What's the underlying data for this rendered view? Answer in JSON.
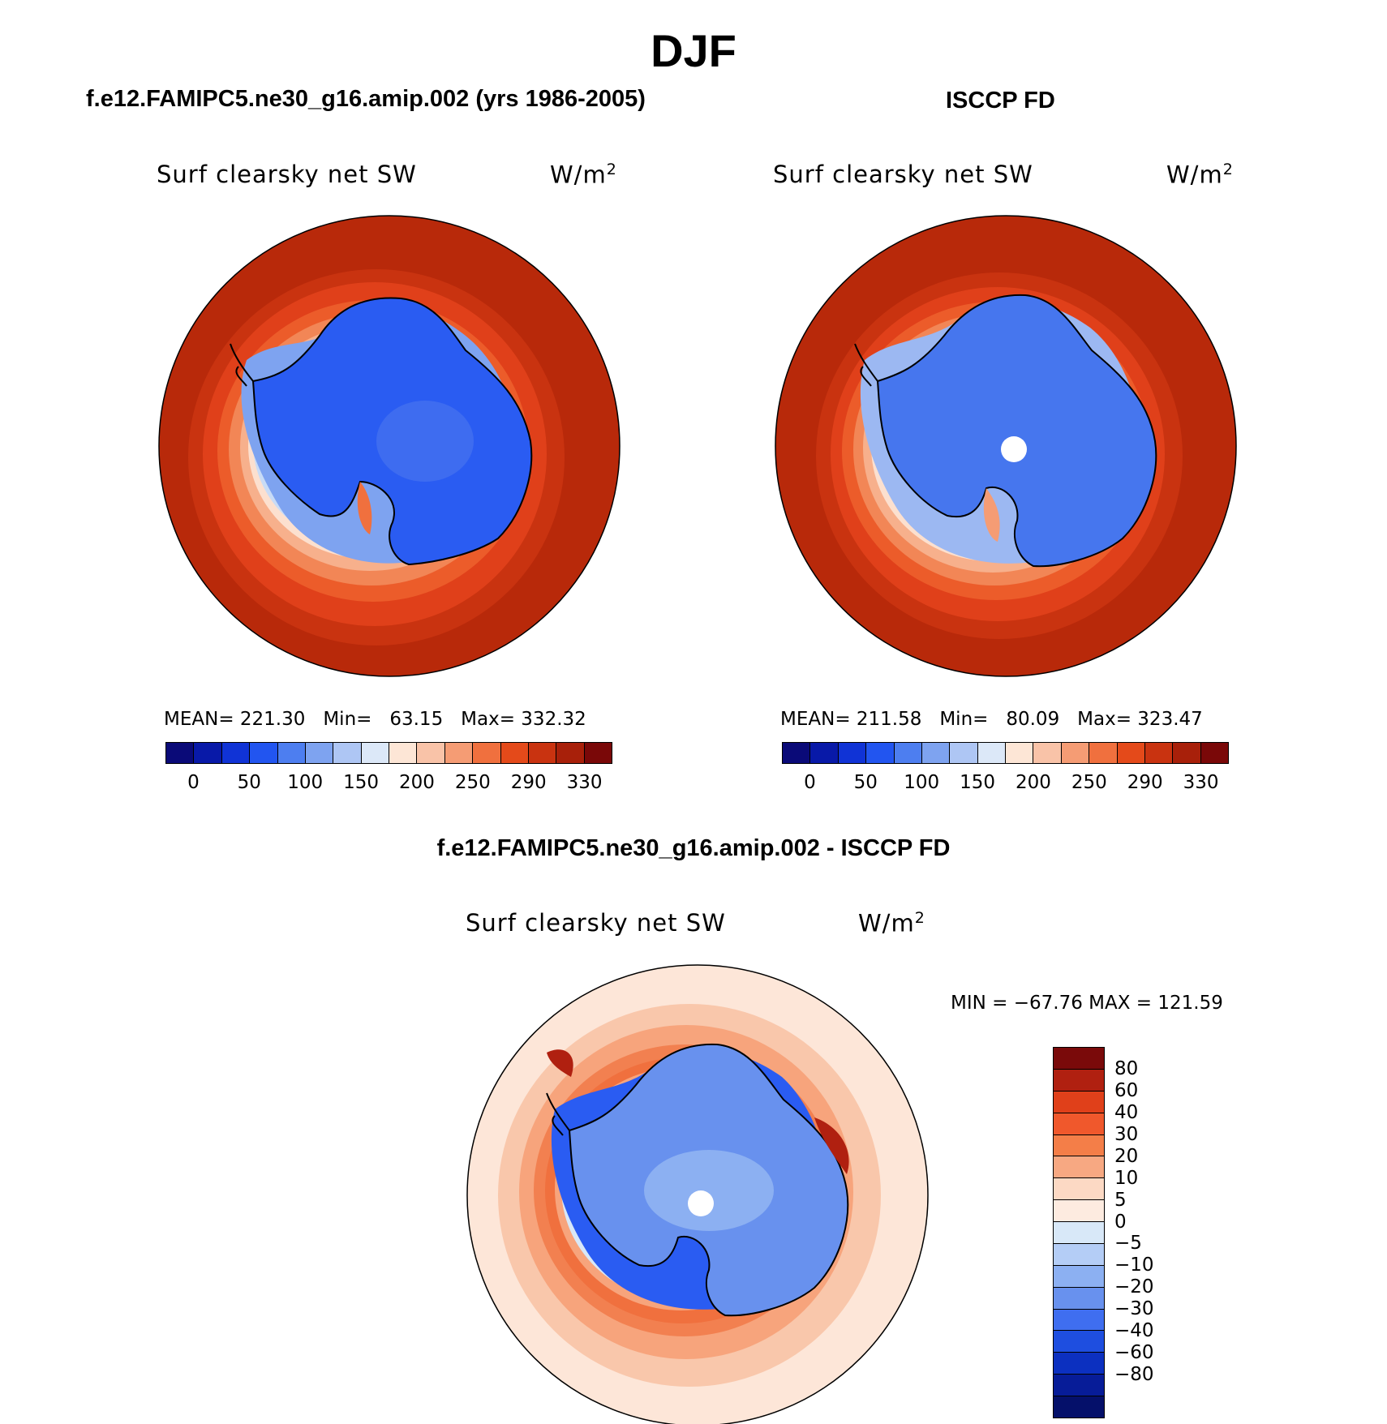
{
  "figure": {
    "season": "DJF"
  },
  "panels": {
    "model": {
      "case_title": "f.e12.FAMIPC5.ne30_g16.amip.002 (yrs 1986-2005)",
      "variable": "Surf clearsky net SW",
      "units_base": "W/m",
      "units_exp": "2",
      "mean_label": "MEAN=",
      "mean_value": "221.30",
      "min_label": "Min=",
      "min_value": "63.15",
      "max_label": "Max=",
      "max_value": "332.32"
    },
    "obs": {
      "case_title": "ISCCP FD",
      "variable": "Surf clearsky net SW",
      "units_base": "W/m",
      "units_exp": "2",
      "mean_label": "MEAN=",
      "mean_value": "211.58",
      "min_label": "Min=",
      "min_value": "80.09",
      "max_label": "Max=",
      "max_value": "323.47"
    },
    "diff": {
      "case_title": "f.e12.FAMIPC5.ne30_g16.amip.002 - ISCCP FD",
      "variable": "Surf clearsky net SW",
      "units_base": "W/m",
      "units_exp": "2",
      "minmax_text": "MIN = −67.76 MAX = 121.59"
    }
  },
  "colorbars": {
    "absolute": {
      "colors": [
        "#0a0a78",
        "#0819a8",
        "#1033d6",
        "#2255f0",
        "#4d7ef0",
        "#7ea3f0",
        "#aec6f4",
        "#dce8f8",
        "#fde6d6",
        "#f9c3a8",
        "#f59c74",
        "#f0703e",
        "#e44a1a",
        "#c93310",
        "#a8200a",
        "#7a0808"
      ],
      "labels": [
        "0",
        "50",
        "100",
        "150",
        "200",
        "250",
        "290",
        "330"
      ]
    },
    "difference": {
      "colors": [
        "#7a0a0a",
        "#b02010",
        "#e0401a",
        "#f0582c",
        "#f47e48",
        "#f7a882",
        "#fcd9c4",
        "#fdebe0",
        "#d8e8f8",
        "#b4cdf6",
        "#8cb0f2",
        "#6891ee",
        "#3f6ef0",
        "#1e4ee0",
        "#0c30c0",
        "#071c98",
        "#05106a"
      ],
      "labels": [
        "80",
        "60",
        "40",
        "30",
        "20",
        "10",
        "5",
        "0",
        "−5",
        "−10",
        "−20",
        "−30",
        "−40",
        "−60",
        "−80"
      ]
    }
  },
  "chart_data": [
    {
      "type": "heatmap",
      "projection": "south polar stereographic",
      "title": "Surf clearsky net SW",
      "case": "f.e12.FAMIPC5.ne30_g16.amip.002 (yrs 1986-2005)",
      "units": "W/m2",
      "contour_levels": [
        0,
        25,
        50,
        75,
        100,
        125,
        150,
        175,
        200,
        225,
        250,
        270,
        290,
        310,
        330
      ],
      "stats": {
        "mean": 221.3,
        "min": 63.15,
        "max": 332.32
      },
      "colorbar": "absolute",
      "pattern": "Antarctic continent ~90-130 (blue), increasing to ~290-330 over the Southern Ocean (red)"
    },
    {
      "type": "heatmap",
      "projection": "south polar stereographic",
      "title": "Surf clearsky net SW",
      "case": "ISCCP FD",
      "units": "W/m2",
      "contour_levels": [
        0,
        25,
        50,
        75,
        100,
        125,
        150,
        175,
        200,
        225,
        250,
        270,
        290,
        310,
        330
      ],
      "stats": {
        "mean": 211.58,
        "min": 80.09,
        "max": 323.47
      },
      "colorbar": "absolute",
      "pattern": "Antarctic continent ~100-125 (blue), increasing to ~290-310 over the Southern Ocean (red); missing data at pole"
    },
    {
      "type": "heatmap",
      "projection": "south polar stereographic",
      "title": "Surf clearsky net SW",
      "case": "f.e12.FAMIPC5.ne30_g16.amip.002 - ISCCP FD",
      "units": "W/m2",
      "contour_levels": [
        -80,
        -60,
        -40,
        -30,
        -20,
        -10,
        -5,
        0,
        5,
        10,
        20,
        30,
        40,
        60,
        80
      ],
      "stats": {
        "min": -67.76,
        "max": 121.59
      },
      "colorbar": "difference",
      "pattern": "Negative differences (-5 to -40) over Antarctica, positive ring (+10 to +60) around the coast, near-zero (0 to +5) far field"
    }
  ]
}
